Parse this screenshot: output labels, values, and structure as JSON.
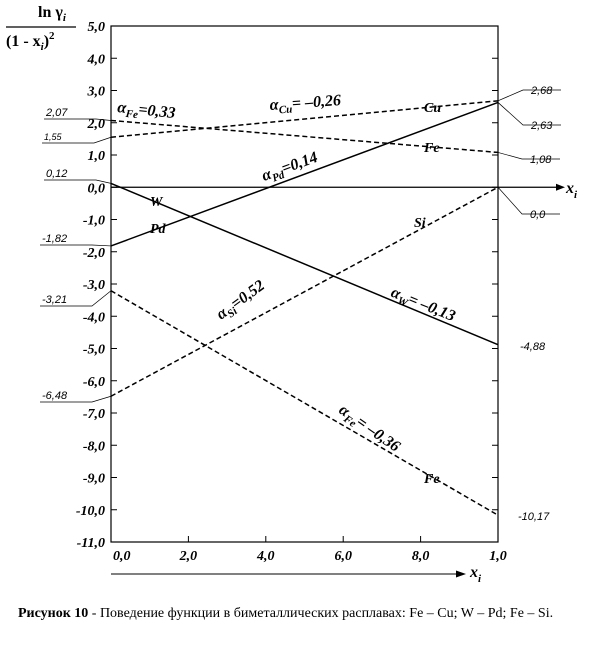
{
  "chart_data": {
    "type": "line",
    "ylabel_top": "ln γ",
    "ylabel_top_sub": "i",
    "ylabel_bottom": "(1 -  x",
    "ylabel_bottom_sub": "i",
    "ylabel_bottom_end": ")",
    "ylabel_bottom_sup": "2",
    "xlabel": "x",
    "xlabel_sub": "i",
    "xlim": [
      0,
      1.0
    ],
    "ylim": [
      -11.0,
      5.0
    ],
    "x_ticks": [
      "0,0",
      "2,0",
      "4,0",
      "6,0",
      "8,0",
      "1,0"
    ],
    "y_ticks": [
      "5,0",
      "4,0",
      "3,0",
      "2,0",
      "1,0",
      "0,0",
      "-1,0",
      "-2,0",
      "-3,0",
      "-4,0",
      "-5,0",
      "-6,0",
      "-7,0",
      "-8,0",
      "-9,0",
      "-10,0",
      "-11,0"
    ],
    "y_tick_values": [
      5,
      4,
      3,
      2,
      1,
      0,
      -1,
      -2,
      -3,
      -4,
      -5,
      -6,
      -7,
      -8,
      -9,
      -10,
      -11
    ],
    "series": [
      {
        "name": "Cu",
        "style": "dashed",
        "x": [
          0,
          1.0
        ],
        "y": [
          1.55,
          2.68
        ],
        "label": "Cu"
      },
      {
        "name": "Fe",
        "style": "dashed",
        "x": [
          0,
          1.0
        ],
        "y": [
          2.07,
          1.08
        ],
        "label": "Fe"
      },
      {
        "name": "Pd",
        "style": "solid",
        "x": [
          0,
          1.0
        ],
        "y": [
          -1.82,
          2.63
        ],
        "label": "Pd"
      },
      {
        "name": "W",
        "style": "solid",
        "x": [
          0,
          1.0
        ],
        "y": [
          0.12,
          -4.88
        ],
        "label": "W"
      },
      {
        "name": "Si",
        "style": "dashed",
        "x": [
          0,
          1.0
        ],
        "y": [
          -6.48,
          0.0
        ],
        "label": "Si"
      },
      {
        "name": "Fe",
        "style": "dashed",
        "x": [
          0,
          1.0
        ],
        "y": [
          -3.21,
          -10.17
        ],
        "label": "Fe"
      }
    ],
    "left_value_labels": [
      "2,07",
      "1,55",
      "0,12",
      "-1,82",
      "-3,21",
      "-6,48"
    ],
    "right_value_labels": [
      "2,68",
      "2,63",
      "1,08",
      "0,0",
      "-4,88",
      "-10,17"
    ],
    "alpha_labels": [
      {
        "alpha": "α",
        "sub": "Fe",
        "text": "=0,33"
      },
      {
        "alpha": "α",
        "sub": "Cu",
        "text": "= –0,26"
      },
      {
        "alpha": "α",
        "sub": "Pd",
        "text": "=0,14"
      },
      {
        "alpha": "α",
        "sub": "Si",
        "text": "=0,52"
      },
      {
        "alpha": "α",
        "sub": "W",
        "text": "= –0,13"
      },
      {
        "alpha": "α",
        "sub": "Fe",
        "text": "= –0,36"
      }
    ]
  },
  "caption": {
    "label": "Рисунок 10",
    "text": " - Поведение функции  в биметаллических расплавах:  Fe – Cu;  W – Pd;  Fe – Si."
  }
}
